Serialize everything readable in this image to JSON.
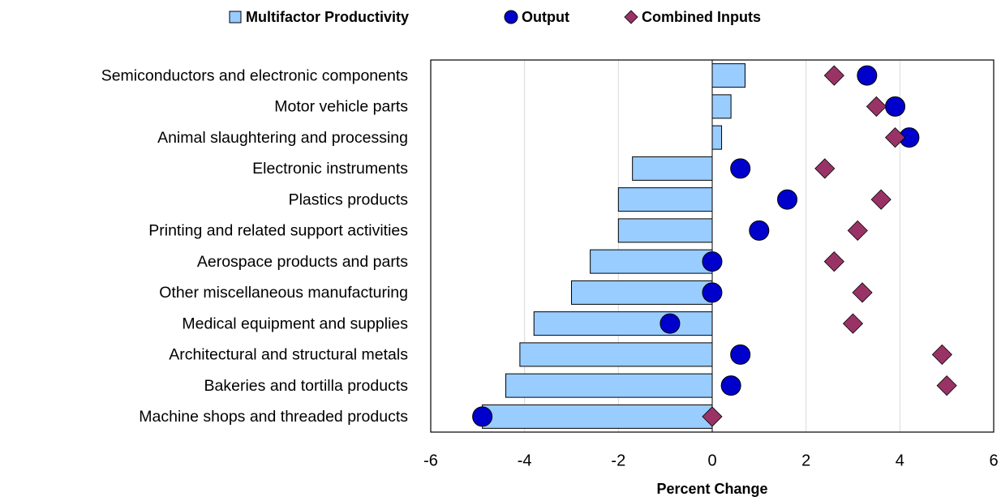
{
  "chart_data": {
    "type": "bar",
    "orientation": "horizontal",
    "x_label": "Percent Change",
    "categories": [
      "Semiconductors and electronic components",
      "Motor vehicle parts",
      "Animal slaughtering and processing",
      "Electronic instruments",
      "Plastics products",
      "Printing and related support activities",
      "Aerospace products and parts",
      "Other miscellaneous manufacturing",
      "Medical equipment and supplies",
      "Architectural and structural metals",
      "Bakeries and tortilla products",
      "Machine shops and threaded products"
    ],
    "series": [
      {
        "name": "Multifactor Productivity",
        "type": "bar",
        "color": "#99ccff",
        "values": [
          0.7,
          0.4,
          0.2,
          -1.7,
          -2.0,
          -2.0,
          -2.6,
          -3.0,
          -3.8,
          -4.1,
          -4.4,
          -4.9
        ]
      },
      {
        "name": "Output",
        "type": "scatter",
        "marker": "circle",
        "color": "#0000cc",
        "values": [
          3.3,
          3.9,
          4.2,
          0.6,
          1.6,
          1.0,
          0.0,
          0.0,
          -0.9,
          0.6,
          0.4,
          -4.9
        ]
      },
      {
        "name": "Combined Inputs",
        "type": "scatter",
        "marker": "diamond",
        "color": "#993366",
        "values": [
          2.6,
          3.5,
          3.9,
          2.4,
          3.6,
          3.1,
          2.6,
          3.2,
          3.0,
          4.9,
          5.0,
          0.0
        ]
      }
    ],
    "xlim": [
      -6,
      6
    ],
    "xticks": [
      -6,
      -4,
      -2,
      0,
      2,
      4,
      6
    ],
    "grid": true,
    "legend": "top"
  }
}
